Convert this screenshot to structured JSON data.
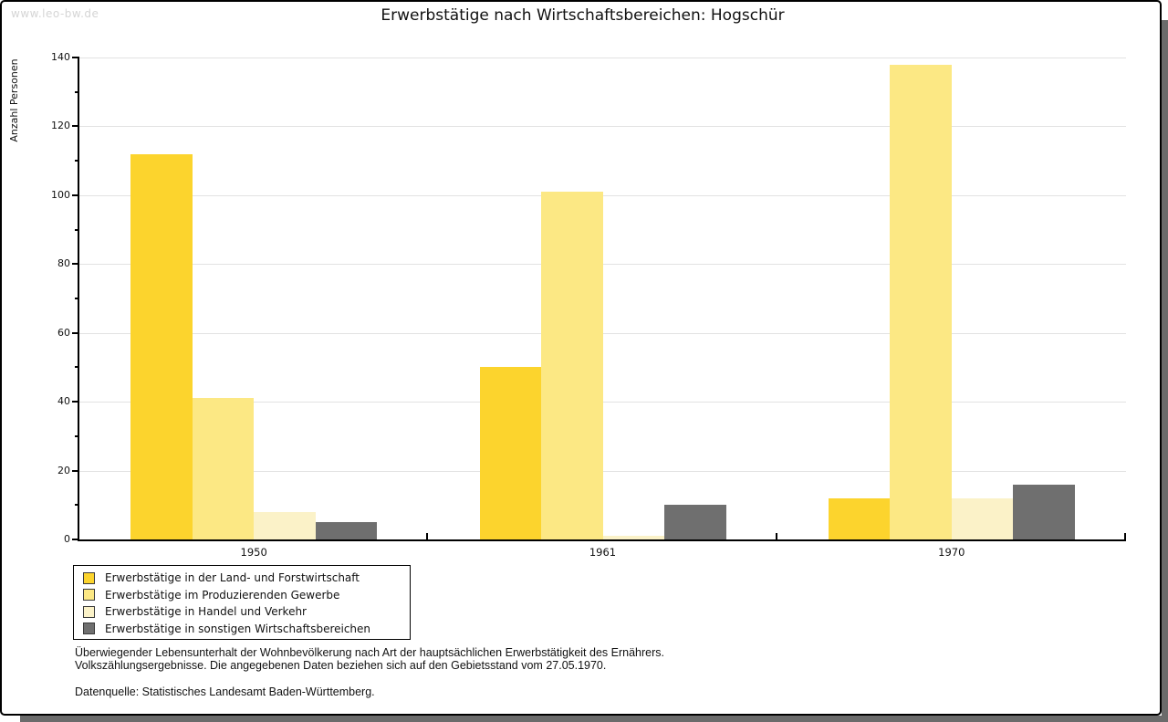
{
  "watermark": "www.leo-bw.de",
  "title": "Erwerbstätige nach Wirtschaftsbereichen: Hogschür",
  "chart_data": {
    "type": "bar",
    "title": "Erwerbstätige nach Wirtschaftsbereichen: Hogschür",
    "xlabel": "",
    "ylabel": "Anzahl Personen",
    "ylim": [
      0,
      140
    ],
    "ytick_step": 20,
    "ytick_minor_step": 10,
    "grid": true,
    "legend_position": "bottom-left",
    "categories": [
      "1950",
      "1961",
      "1970"
    ],
    "series": [
      {
        "name": "Erwerbstätige in der Land- und Forstwirtschaft",
        "color": "#FCD42D",
        "values": [
          112,
          50,
          12
        ]
      },
      {
        "name": "Erwerbstätige im Produzierenden Gewerbe",
        "color": "#FCE884",
        "values": [
          41,
          101,
          138
        ]
      },
      {
        "name": "Erwerbstätige in Handel und Verkehr",
        "color": "#FBF2C8",
        "values": [
          8,
          1,
          12
        ]
      },
      {
        "name": "Erwerbstätige in sonstigen Wirtschaftsbereichen",
        "color": "#6F6F6F",
        "values": [
          5,
          10,
          16
        ]
      }
    ]
  },
  "footer": {
    "line1": "Überwiegender Lebensunterhalt der Wohnbevölkerung nach Art der hauptsächlichen Erwerbstätigkeit des Ernährers.",
    "line2": "Volkszählungsergebnisse. Die angegebenen Daten beziehen sich auf den Gebietsstand vom 27.05.1970.",
    "source": "Datenquelle: Statistisches Landesamt Baden-Württemberg."
  }
}
